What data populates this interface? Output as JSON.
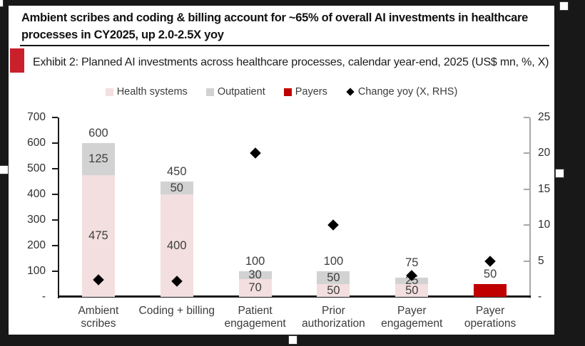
{
  "header": {
    "title": "Ambient scribes and coding & billing account for ~65% of overall AI investments in healthcare processes in CY2025, up 2.0-2.5X yoy",
    "exhibit_label": "Exhibit 2: Planned AI investments across healthcare processes, calendar year-end, 2025 (US$ mn, %, X)"
  },
  "colors": {
    "health_systems": "#f3dfdf",
    "outpatient": "#d2d2d2",
    "payers": "#c00000",
    "change_marker": "#000000",
    "exhibit_marker": "#c9202c",
    "frame": "#181818",
    "axis": "#1a1a1a",
    "right_axis": "#a8a8a8"
  },
  "legend": {
    "items": [
      {
        "label": "Health systems",
        "marker": "square",
        "color": "#f3dfdf"
      },
      {
        "label": "Outpatient",
        "marker": "square",
        "color": "#d2d2d2"
      },
      {
        "label": "Payers",
        "marker": "square",
        "color": "#c00000"
      },
      {
        "label": "Change yoy (X, RHS)",
        "marker": "diamond",
        "color": "#000000"
      }
    ]
  },
  "chart_data": {
    "type": "bar",
    "subtype": "stacked-bars-with-diamond-scatter",
    "title": "Planned AI investments across healthcare processes, calendar year-end, 2025 (US$ mn, %, X)",
    "categories": [
      "Ambient scribes",
      "Coding + billing",
      "Patient engagement",
      "Prior authorization",
      "Payer engagement",
      "Payer operations"
    ],
    "category_lines": [
      [
        "Ambient",
        "scribes"
      ],
      [
        "Coding + billing"
      ],
      [
        "Patient",
        "engagement"
      ],
      [
        "Prior",
        "authorization"
      ],
      [
        "Payer",
        "engagement"
      ],
      [
        "Payer",
        "operations"
      ]
    ],
    "series": [
      {
        "name": "Health systems",
        "axis": "left",
        "color": "#f3dfdf",
        "segment_labels_visible": true,
        "values": [
          475,
          400,
          70,
          50,
          50,
          0
        ]
      },
      {
        "name": "Outpatient",
        "axis": "left",
        "color": "#d2d2d2",
        "segment_labels_visible": true,
        "values": [
          125,
          50,
          30,
          50,
          25,
          0
        ]
      },
      {
        "name": "Payers",
        "axis": "left",
        "color": "#c00000",
        "segment_labels_visible": false,
        "values": [
          0,
          0,
          0,
          0,
          0,
          50
        ]
      }
    ],
    "totals": [
      600,
      450,
      100,
      100,
      75,
      50
    ],
    "change_yoy": {
      "name": "Change yoy (X, RHS)",
      "axis": "right",
      "marker": "diamond",
      "color": "#000000",
      "values": [
        2.4,
        2.2,
        20,
        10,
        3,
        5
      ]
    },
    "left_axis": {
      "min": 0,
      "max": 700,
      "step": 100,
      "ticks": [
        "700",
        "600",
        "500",
        "400",
        "300",
        "200",
        "100",
        "-"
      ]
    },
    "right_axis": {
      "min": 0,
      "max": 25,
      "step": 5,
      "ticks": [
        "25",
        "20",
        "15",
        "10",
        "5",
        "-"
      ]
    },
    "grid": false,
    "legend_position": "top"
  }
}
